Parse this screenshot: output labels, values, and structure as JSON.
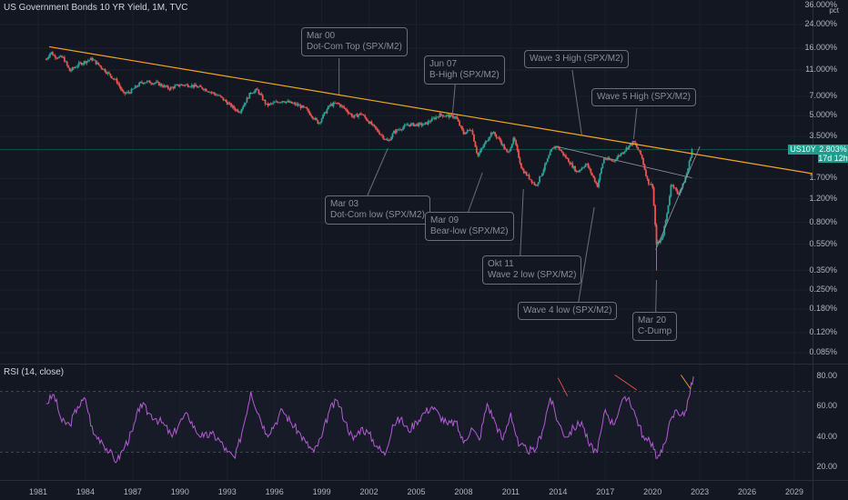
{
  "window_title": "US Government Bonds 10 YR Yield, 1M, TVC",
  "symbol_badge": "US10Y",
  "last_price": "2.803%",
  "countdown": "17d 12h",
  "colors": {
    "background": "#131722",
    "up": "#26a69a",
    "down": "#ef5350",
    "trendline": "#f5a623",
    "rsi_line": "#b45bd6",
    "annotation_border": "#6b6e76",
    "accent": "#1e9e8e"
  },
  "chart_data": [
    {
      "type": "candlestick",
      "title": "US Government Bonds 10 YR Yield, 1M, TVC",
      "y_scale": "log",
      "y_unit": "pct",
      "y_ticks": [
        "36.000%",
        "24.000%",
        "16.000%",
        "11.000%",
        "7.000%",
        "5.000%",
        "3.500%",
        "2.803%",
        "1.700%",
        "1.200%",
        "0.800%",
        "0.550%",
        "0.350%",
        "0.250%",
        "0.180%",
        "0.120%",
        "0.085%"
      ],
      "x_ticks": [
        "1981",
        "1984",
        "1987",
        "1990",
        "1993",
        "1996",
        "1999",
        "2002",
        "2005",
        "2008",
        "2011",
        "2014",
        "2017",
        "2020",
        "2023",
        "2026",
        "2029"
      ],
      "series": [
        {
          "name": "US10Y",
          "x": [
            1981.5,
            1981.8,
            1982.0,
            1982.6,
            1983.0,
            1983.6,
            1984.4,
            1985.2,
            1986.0,
            1986.4,
            1986.8,
            1987.5,
            1987.8,
            1988.5,
            1989.3,
            1990.0,
            1990.6,
            1991.5,
            1992.5,
            1993.5,
            1993.8,
            1994.5,
            1994.9,
            1995.5,
            1996.5,
            1997.5,
            1998.0,
            1998.8,
            1999.5,
            2000.0,
            2000.5,
            2001.0,
            2001.5,
            2002.5,
            2003.2,
            2003.6,
            2004.5,
            2005.5,
            2006.5,
            2007.5,
            2008.0,
            2008.5,
            2008.9,
            2009.2,
            2009.8,
            2010.3,
            2010.8,
            2011.2,
            2011.7,
            2012.6,
            2013.0,
            2013.6,
            2013.9,
            2014.8,
            2015.2,
            2015.8,
            2016.5,
            2016.9,
            2017.5,
            2018.4,
            2018.8,
            2019.3,
            2019.7,
            2020.0,
            2020.25,
            2020.6,
            2020.9,
            2021.2,
            2021.6,
            2021.9,
            2022.2,
            2022.5
          ],
          "values": [
            13.2,
            15.0,
            14.0,
            13.5,
            10.8,
            12.2,
            13.3,
            11.0,
            9.0,
            7.3,
            7.5,
            8.8,
            9.0,
            8.8,
            8.0,
            8.5,
            8.5,
            8.0,
            7.0,
            5.6,
            5.4,
            7.5,
            7.8,
            6.0,
            6.5,
            6.0,
            5.6,
            4.4,
            6.0,
            6.2,
            5.6,
            4.9,
            5.2,
            3.9,
            3.2,
            3.8,
            4.3,
            4.3,
            5.1,
            4.9,
            3.7,
            4.0,
            2.5,
            2.9,
            3.8,
            3.3,
            2.6,
            3.4,
            2.0,
            1.5,
            1.9,
            2.8,
            3.0,
            2.2,
            1.9,
            2.2,
            1.5,
            2.4,
            2.3,
            2.9,
            3.2,
            2.5,
            1.6,
            1.5,
            0.55,
            0.6,
            0.9,
            1.6,
            1.3,
            1.5,
            1.9,
            2.8
          ]
        }
      ],
      "annotations": [
        {
          "date": "Mar 00",
          "label": "Dot-Com Top (SPX/M2)"
        },
        {
          "date": "Jun 07",
          "label": "B-High (SPX/M2)"
        },
        {
          "date": "",
          "label": "Wave 3 High (SPX/M2)"
        },
        {
          "date": "",
          "label": "Wave 5 High (SPX/M2)"
        },
        {
          "date": "Mar 03",
          "label": "Dot-Com low (SPX/M2)"
        },
        {
          "date": "Mar 09",
          "label": "Bear-low (SPX/M2)"
        },
        {
          "date": "Okt 11",
          "label": "Wave 2 low (SPX/M2)"
        },
        {
          "date": "",
          "label": "Wave 4 low (SPX/M2)"
        },
        {
          "date": "Mar 20",
          "label": "C-Dump"
        }
      ]
    },
    {
      "type": "line",
      "title": "RSI (14, close)",
      "y_ticks": [
        "80.00",
        "60.00",
        "40.00",
        "20.00"
      ],
      "ylim": [
        15,
        85
      ],
      "reference_lines": [
        70,
        30
      ],
      "series": [
        {
          "name": "RSI (14, close)",
          "x": [
            1981.5,
            1982.0,
            1982.5,
            1983.0,
            1983.5,
            1984.0,
            1984.5,
            1985.0,
            1985.5,
            1986.0,
            1986.5,
            1987.0,
            1987.5,
            1988.0,
            1988.5,
            1989.0,
            1989.5,
            1990.0,
            1990.5,
            1991.0,
            1991.5,
            1992.0,
            1992.5,
            1993.0,
            1993.5,
            1994.0,
            1994.5,
            1995.0,
            1995.5,
            1996.0,
            1996.5,
            1997.0,
            1997.5,
            1998.0,
            1998.5,
            1999.0,
            1999.5,
            2000.0,
            2000.5,
            2001.0,
            2001.5,
            2002.0,
            2002.5,
            2003.0,
            2003.5,
            2004.0,
            2004.5,
            2005.0,
            2005.5,
            2006.0,
            2006.5,
            2007.0,
            2007.5,
            2008.0,
            2008.5,
            2009.0,
            2009.5,
            2010.0,
            2010.5,
            2011.0,
            2011.5,
            2012.0,
            2012.5,
            2013.0,
            2013.5,
            2014.0,
            2014.5,
            2015.0,
            2015.5,
            2016.0,
            2016.5,
            2017.0,
            2017.5,
            2018.0,
            2018.5,
            2019.0,
            2019.5,
            2020.0,
            2020.3,
            2020.6,
            2021.0,
            2021.5,
            2022.0,
            2022.3,
            2022.6
          ],
          "values": [
            62,
            68,
            50,
            48,
            60,
            65,
            42,
            38,
            30,
            24,
            34,
            44,
            62,
            56,
            52,
            48,
            40,
            50,
            55,
            44,
            40,
            42,
            38,
            30,
            26,
            46,
            70,
            55,
            42,
            48,
            58,
            50,
            44,
            36,
            30,
            40,
            58,
            64,
            50,
            38,
            46,
            42,
            34,
            28,
            48,
            52,
            44,
            50,
            56,
            60,
            54,
            48,
            50,
            36,
            46,
            38,
            62,
            50,
            38,
            56,
            34,
            32,
            30,
            44,
            66,
            50,
            40,
            46,
            50,
            34,
            30,
            58,
            48,
            62,
            66,
            52,
            38,
            36,
            26,
            30,
            46,
            58,
            54,
            66,
            80
          ]
        }
      ]
    }
  ]
}
